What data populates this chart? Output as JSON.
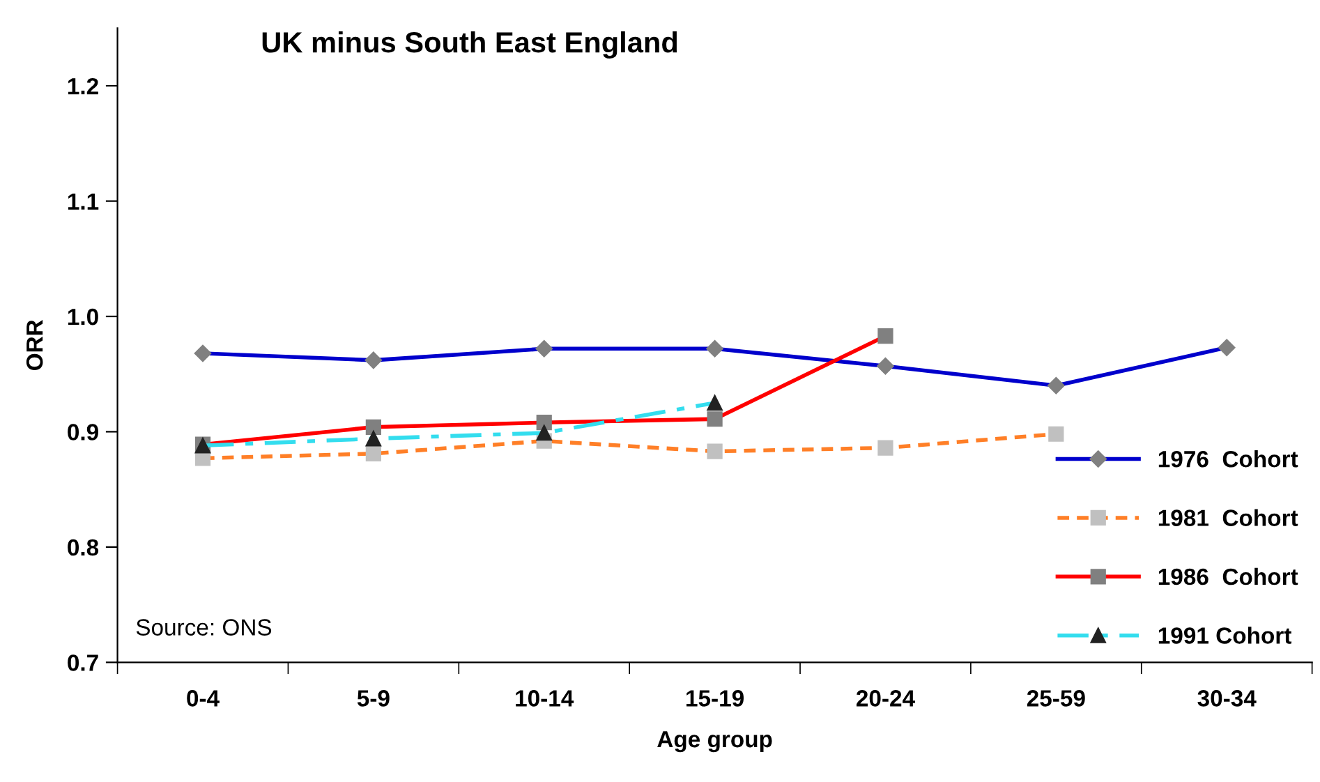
{
  "chart_data": {
    "type": "line",
    "title": "UK minus South East England",
    "xlabel": "Age group",
    "ylabel": "ORR",
    "categories": [
      "0-4",
      "5-9",
      "10-14",
      "15-19",
      "20-24",
      "25-59",
      "30-34"
    ],
    "series": [
      {
        "name": "1976  Cohort",
        "color": "#0000cc",
        "colors": [
          "#808080",
          "#808080",
          "#808080",
          "#808080",
          "#808080",
          "#808080",
          "#808080"
        ],
        "marker": "diamond",
        "line_style": "solid",
        "values": [
          0.968,
          0.962,
          0.972,
          0.972,
          0.957,
          0.94,
          0.973
        ]
      },
      {
        "name": "1981  Cohort",
        "color": "#ff7f27",
        "colors": [
          "#c0c0c0",
          "#c0c0c0",
          "#c0c0c0",
          "#c0c0c0",
          "#c0c0c0",
          "#c0c0c0",
          null
        ],
        "marker": "square",
        "line_style": "dashed",
        "values": [
          0.877,
          0.881,
          0.892,
          0.883,
          0.886,
          0.898,
          null
        ]
      },
      {
        "name": "1986  Cohort",
        "color": "#ff0000",
        "colors": [
          "#808080",
          "#808080",
          "#808080",
          "#808080",
          "#808080",
          null,
          null
        ],
        "marker": "square",
        "line_style": "solid",
        "values": [
          0.889,
          0.904,
          0.908,
          0.911,
          0.983,
          null,
          null
        ]
      },
      {
        "name": "1991 Cohort",
        "color": "#33ddee",
        "colors": [
          "#222222",
          "#222222",
          "#222222",
          "#222222",
          null,
          null,
          null
        ],
        "marker": "triangle",
        "line_style": "dashdot",
        "values": [
          0.888,
          0.894,
          0.899,
          0.925,
          null,
          null,
          null
        ]
      }
    ],
    "ylim": [
      0.7,
      1.25
    ],
    "yticks": [
      {
        "value": 0.7,
        "label": "0.7"
      },
      {
        "value": 0.8,
        "label": "0.8"
      },
      {
        "value": 0.9,
        "label": "0.9"
      },
      {
        "value": 1.0,
        "label": "1.0"
      },
      {
        "value": 1.1,
        "label": "1.1"
      },
      {
        "value": 1.2,
        "label": "1.2"
      }
    ],
    "grid": false,
    "legend": "bottom right",
    "annotations": [
      "Source: ONS"
    ]
  }
}
